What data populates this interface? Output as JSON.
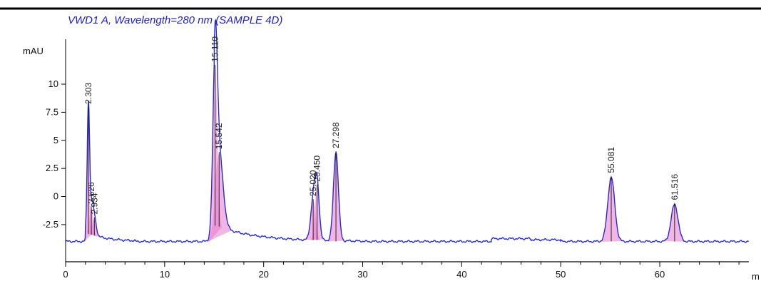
{
  "chart_data": {
    "type": "line",
    "title": "VWD1 A, Wavelength=280 nm (SAMPLE 4D)",
    "ylabel": "mAU",
    "xlabel": "m",
    "xlim": [
      0,
      69
    ],
    "ylim": [
      -4.6,
      14
    ],
    "baseline": -4.0,
    "x_ticks": [
      0,
      10,
      20,
      30,
      40,
      50,
      60
    ],
    "x_tick_labels": [
      "0",
      "10",
      "20",
      "30",
      "40",
      "50",
      "60"
    ],
    "y_ticks": [
      -2.5,
      0,
      2.5,
      5,
      7.5,
      10
    ],
    "y_tick_labels": [
      "-2.5",
      "0",
      "2.5",
      "5",
      "7.5",
      "10"
    ],
    "peaks": [
      {
        "rt": 2.3,
        "height": 11.2,
        "width": 0.12,
        "label": "2.303"
      },
      {
        "rt": 2.6,
        "height": 2.4,
        "width": 0.18,
        "label": "2.626"
      },
      {
        "rt": 2.9,
        "height": 1.5,
        "width": 0.2,
        "label": "2.934"
      },
      {
        "rt": 15.1,
        "height": 14.2,
        "width": 0.22,
        "label": "15.110"
      },
      {
        "rt": 15.5,
        "height": 6.5,
        "width": 0.4,
        "label": "15.542"
      },
      {
        "rt": 25.0,
        "height": 3.5,
        "width": 0.25,
        "label": "25.020"
      },
      {
        "rt": 25.4,
        "height": 4.8,
        "width": 0.22,
        "label": "25.450"
      },
      {
        "rt": 27.3,
        "height": 7.9,
        "width": 0.25,
        "label": "27.298"
      },
      {
        "rt": 55.1,
        "height": 5.7,
        "width": 0.35,
        "label": "55.081"
      },
      {
        "rt": 61.5,
        "height": 3.3,
        "width": 0.35,
        "label": "61.516"
      }
    ],
    "colors": {
      "title": "#1c1cc9",
      "trace": "#2a2ad0",
      "fill": "#e87ad0",
      "axis": "#000000",
      "marker": "#000000"
    }
  }
}
